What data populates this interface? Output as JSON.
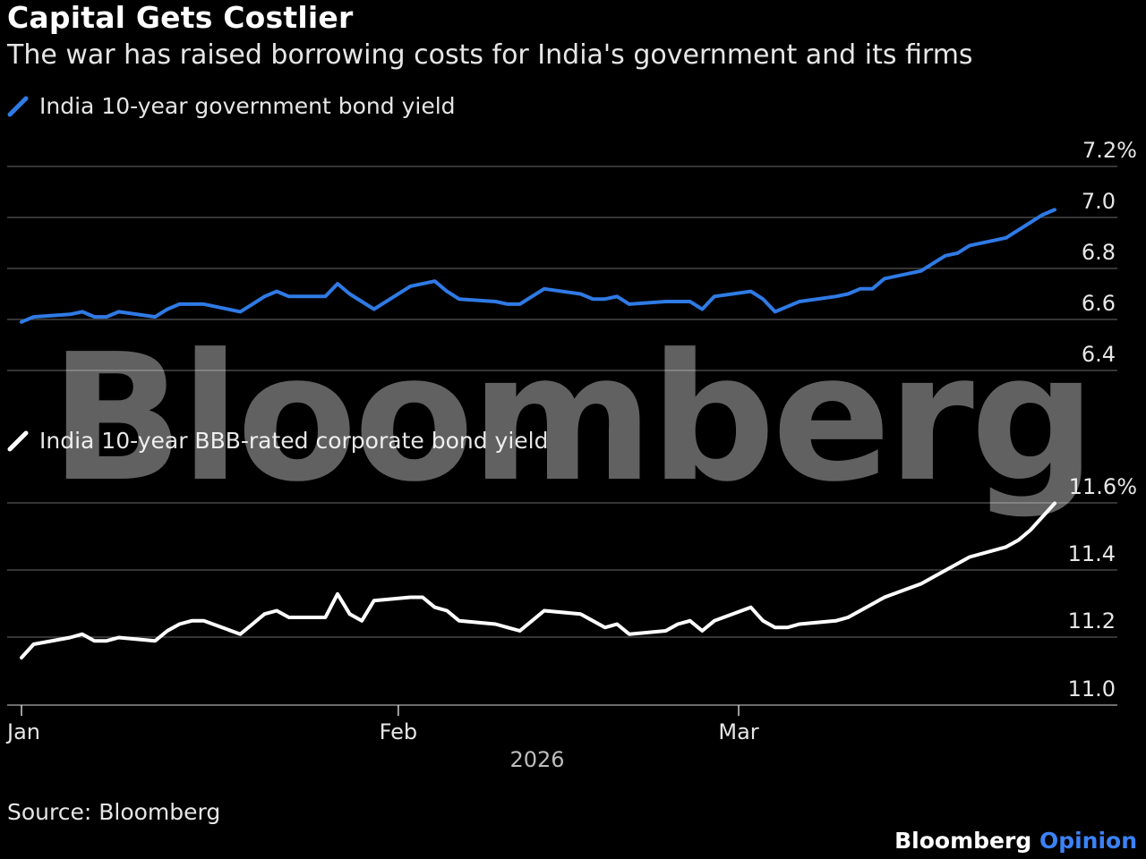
{
  "header": {
    "title": "Capital Gets Costlier",
    "subtitle": "The war has raised borrowing costs for India's government and its firms"
  },
  "footer": {
    "source": "Source: Bloomberg",
    "brand_main": "Bloomberg",
    "brand_accent": "Opinion"
  },
  "watermark": "Bloomberg",
  "colors": {
    "govt": "#2f7ae5",
    "corp": "#ffffff",
    "grid": "#555555",
    "background": "#000000"
  },
  "chart_data": [
    {
      "type": "line",
      "series": [
        {
          "name": "India 10-year government bond yield",
          "color": "#2f7ae5"
        }
      ],
      "y_ticks": [
        "7.2%",
        "7.0",
        "6.8",
        "6.6",
        "6.4"
      ],
      "ylim": [
        6.4,
        7.2
      ],
      "grid": true,
      "x": [
        "2026-01-01",
        "2026-01-02",
        "2026-01-05",
        "2026-01-06",
        "2026-01-07",
        "2026-01-08",
        "2026-01-09",
        "2026-01-12",
        "2026-01-13",
        "2026-01-14",
        "2026-01-15",
        "2026-01-16",
        "2026-01-19",
        "2026-01-20",
        "2026-01-21",
        "2026-01-22",
        "2026-01-23",
        "2026-01-26",
        "2026-01-27",
        "2026-01-28",
        "2026-01-29",
        "2026-01-30",
        "2026-02-02",
        "2026-02-03",
        "2026-02-04",
        "2026-02-05",
        "2026-02-06",
        "2026-02-09",
        "2026-02-10",
        "2026-02-11",
        "2026-02-12",
        "2026-02-13",
        "2026-02-16",
        "2026-02-17",
        "2026-02-18",
        "2026-02-19",
        "2026-02-20",
        "2026-02-23",
        "2026-02-24",
        "2026-02-25",
        "2026-02-26",
        "2026-02-27",
        "2026-03-02",
        "2026-03-03",
        "2026-03-04",
        "2026-03-05",
        "2026-03-06",
        "2026-03-09",
        "2026-03-10",
        "2026-03-11",
        "2026-03-12",
        "2026-03-13",
        "2026-03-16",
        "2026-03-17",
        "2026-03-18",
        "2026-03-19",
        "2026-03-20",
        "2026-03-23",
        "2026-03-24",
        "2026-03-25",
        "2026-03-26",
        "2026-03-27"
      ],
      "values": [
        6.59,
        6.61,
        6.62,
        6.63,
        6.61,
        6.61,
        6.63,
        6.61,
        6.64,
        6.66,
        6.66,
        6.66,
        6.63,
        6.66,
        6.69,
        6.71,
        6.69,
        6.69,
        6.74,
        6.7,
        6.67,
        6.64,
        6.73,
        6.74,
        6.75,
        6.71,
        6.68,
        6.67,
        6.66,
        6.66,
        6.69,
        6.72,
        6.7,
        6.68,
        6.68,
        6.69,
        6.66,
        6.67,
        6.67,
        6.67,
        6.64,
        6.69,
        6.71,
        6.68,
        6.63,
        6.65,
        6.67,
        6.69,
        6.7,
        6.72,
        6.72,
        6.76,
        6.79,
        6.82,
        6.85,
        6.86,
        6.89,
        6.92,
        6.95,
        6.98,
        7.01,
        7.03
      ]
    },
    {
      "type": "line",
      "series": [
        {
          "name": "India 10-year BBB-rated corporate bond yield",
          "color": "#ffffff"
        }
      ],
      "y_ticks": [
        "11.6%",
        "11.4",
        "11.2",
        "11.0"
      ],
      "ylim": [
        10.94,
        11.6
      ],
      "grid": true,
      "x_ticks": [
        "Jan",
        "Feb",
        "Mar"
      ],
      "x_year": "2026",
      "x": [
        "2026-01-01",
        "2026-01-02",
        "2026-01-05",
        "2026-01-06",
        "2026-01-07",
        "2026-01-08",
        "2026-01-09",
        "2026-01-12",
        "2026-01-13",
        "2026-01-14",
        "2026-01-15",
        "2026-01-16",
        "2026-01-19",
        "2026-01-20",
        "2026-01-21",
        "2026-01-22",
        "2026-01-23",
        "2026-01-26",
        "2026-01-27",
        "2026-01-28",
        "2026-01-29",
        "2026-01-30",
        "2026-02-02",
        "2026-02-03",
        "2026-02-04",
        "2026-02-05",
        "2026-02-06",
        "2026-02-09",
        "2026-02-10",
        "2026-02-11",
        "2026-02-12",
        "2026-02-13",
        "2026-02-16",
        "2026-02-17",
        "2026-02-18",
        "2026-02-19",
        "2026-02-20",
        "2026-02-23",
        "2026-02-24",
        "2026-02-25",
        "2026-02-26",
        "2026-02-27",
        "2026-03-02",
        "2026-03-03",
        "2026-03-04",
        "2026-03-05",
        "2026-03-06",
        "2026-03-09",
        "2026-03-10",
        "2026-03-11",
        "2026-03-12",
        "2026-03-13",
        "2026-03-16",
        "2026-03-17",
        "2026-03-18",
        "2026-03-19",
        "2026-03-20",
        "2026-03-23",
        "2026-03-24",
        "2026-03-25",
        "2026-03-26",
        "2026-03-27"
      ],
      "values": [
        11.08,
        11.12,
        11.14,
        11.15,
        11.13,
        11.13,
        11.14,
        11.13,
        11.16,
        11.18,
        11.19,
        11.19,
        11.15,
        11.18,
        11.21,
        11.22,
        11.2,
        11.2,
        11.27,
        11.21,
        11.19,
        11.25,
        11.26,
        11.26,
        11.23,
        11.22,
        11.19,
        11.18,
        11.17,
        11.16,
        11.19,
        11.22,
        11.21,
        11.19,
        11.17,
        11.18,
        11.15,
        11.16,
        11.18,
        11.19,
        11.16,
        11.19,
        11.23,
        11.19,
        11.17,
        11.17,
        11.18,
        11.19,
        11.2,
        11.22,
        11.24,
        11.26,
        11.3,
        11.32,
        11.34,
        11.36,
        11.38,
        11.41,
        11.43,
        11.46,
        11.5,
        11.54
      ]
    }
  ]
}
